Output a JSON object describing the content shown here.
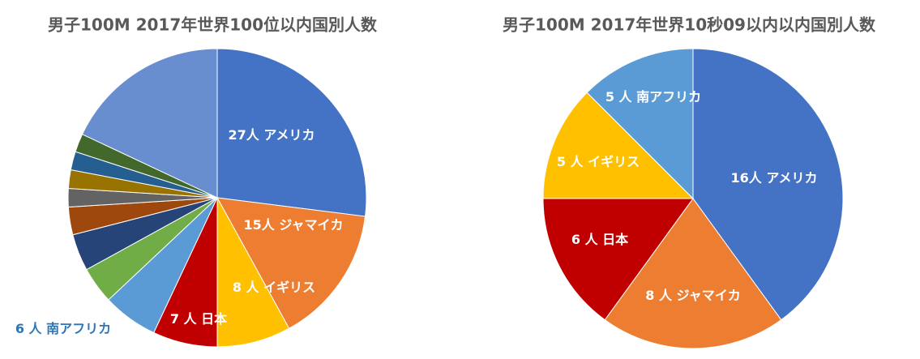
{
  "chart_data": [
    {
      "type": "pie",
      "title": "男子100M 2017年世界100位以内国別人数",
      "categories": [
        "アメリカ",
        "ジャマイカ",
        "イギリス",
        "日本",
        "南アフリカ",
        null,
        null,
        null,
        null,
        null,
        null,
        null,
        null
      ],
      "values": [
        27,
        15,
        8,
        7,
        6,
        4,
        4,
        3,
        2,
        2,
        2,
        2,
        18
      ],
      "value_labels": [
        "27人",
        "15人",
        "8 人",
        "7 人",
        "6 人",
        null,
        null,
        null,
        null,
        null,
        null,
        null,
        null
      ],
      "colors": [
        "#4472c4",
        "#ed7d31",
        "#ffc000",
        "#c00000",
        "#5b9bd5",
        "#70ad47",
        "#264478",
        "#9e480e",
        "#636363",
        "#997300",
        "#255e91",
        "#43682b",
        "#698ed0"
      ]
    },
    {
      "type": "pie",
      "title": "男子100M 2017年世界10秒09以内以内国別人数",
      "categories": [
        "アメリカ",
        "ジャマイカ",
        "日本",
        "イギリス",
        "南アフリカ"
      ],
      "values": [
        16,
        8,
        6,
        5,
        5
      ],
      "value_labels": [
        "16人",
        "8 人",
        "6 人",
        "5 人",
        "5 人"
      ],
      "colors": [
        "#4472c4",
        "#ed7d31",
        "#c00000",
        "#ffc000",
        "#5b9bd5"
      ]
    }
  ]
}
